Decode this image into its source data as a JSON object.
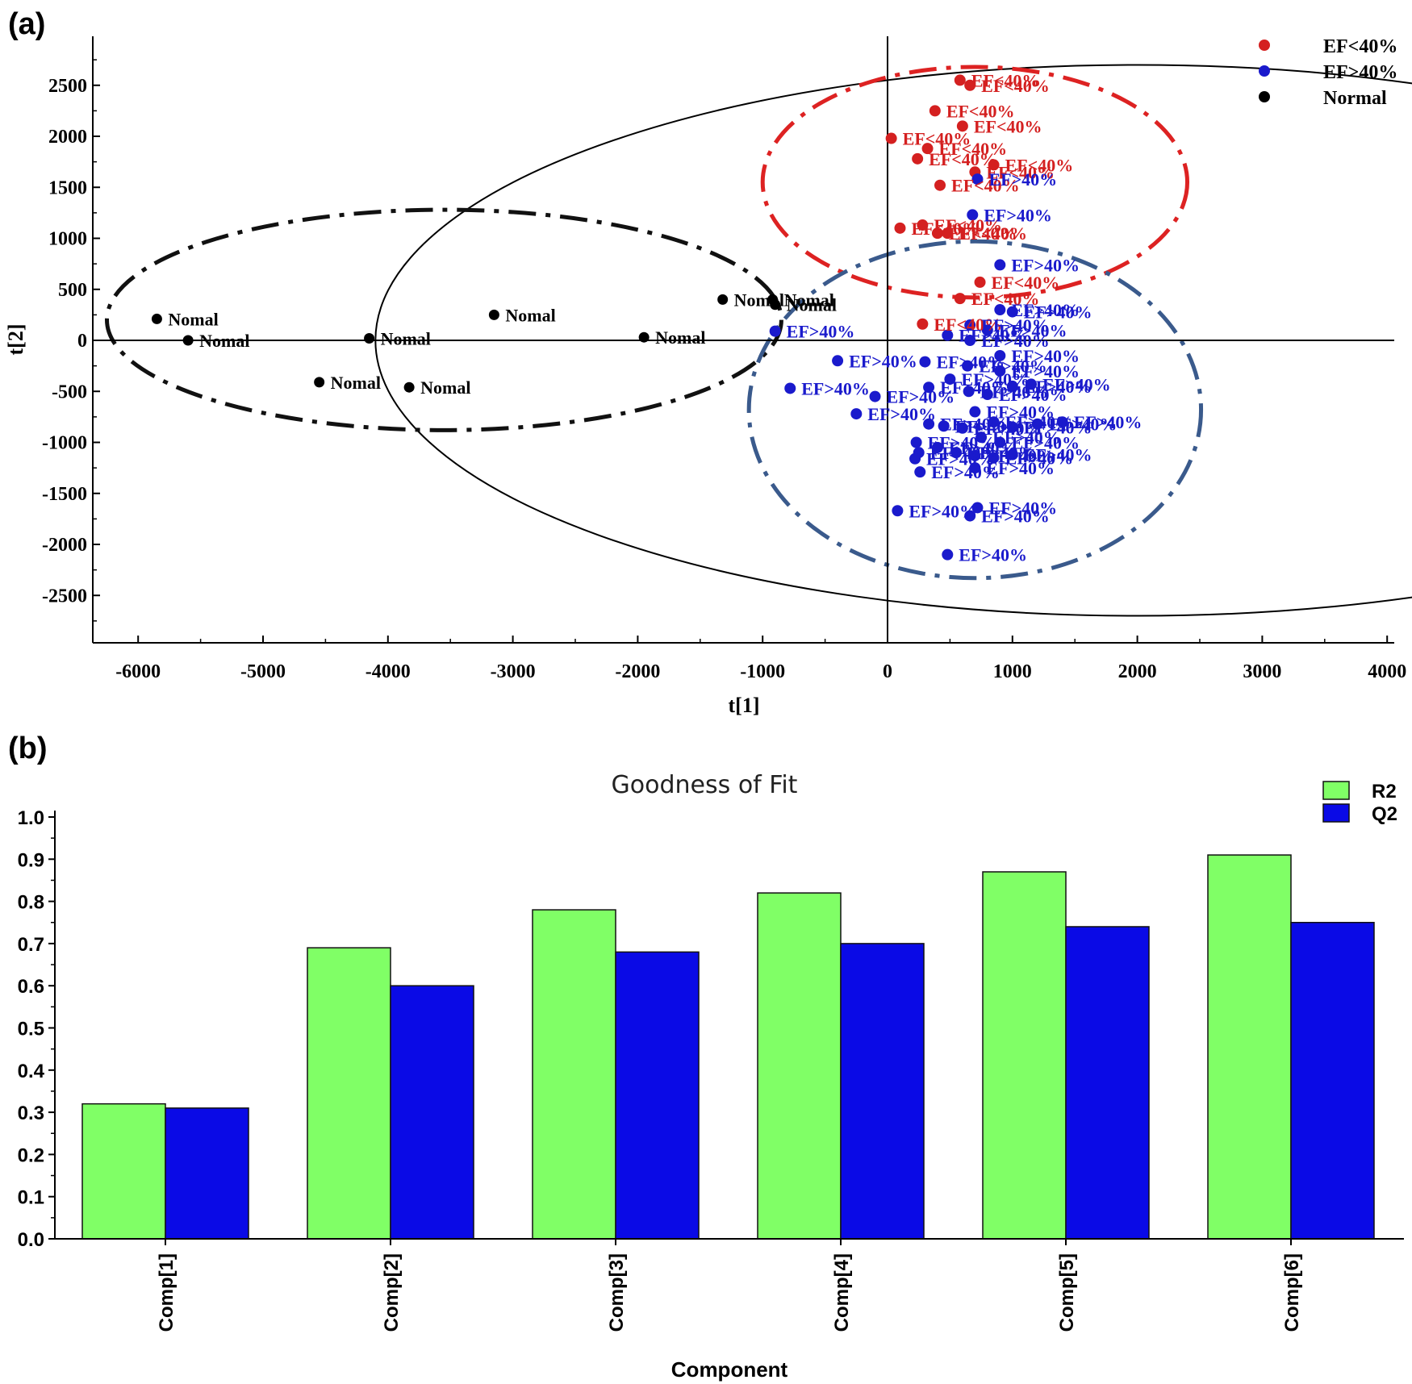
{
  "chart_data": [
    {
      "panel": "(a)",
      "type": "scatter",
      "xlabel": "t[1]",
      "ylabel": "t[2]",
      "xlim": [
        -6500,
        4000
      ],
      "ylim": [
        -2900,
        2900
      ],
      "xticks": [
        -6000,
        -5000,
        -4000,
        -3000,
        -2000,
        -1000,
        0,
        1000,
        2000,
        3000,
        4000
      ],
      "yticks": [
        2500,
        2000,
        1500,
        1000,
        500,
        0,
        -500,
        -1000,
        -1500,
        -2000,
        -2500
      ],
      "legend": [
        {
          "label": "EF<40%",
          "color": "#d42020"
        },
        {
          "label": "EF>40%",
          "color": "#1a1acc"
        },
        {
          "label": "Normal",
          "color": "#000000"
        }
      ],
      "legend_position": "top-right",
      "series": [
        {
          "name": "Normal",
          "color": "#000000",
          "label": "Nomal",
          "points": [
            [
              -5850,
              210
            ],
            [
              -5600,
              0
            ],
            [
              -4150,
              20
            ],
            [
              -3150,
              250
            ],
            [
              -1950,
              30
            ],
            [
              -1320,
              400
            ],
            [
              -920,
              400
            ],
            [
              -900,
              350
            ],
            [
              -4550,
              -410
            ],
            [
              -3830,
              -460
            ]
          ]
        },
        {
          "name": "EF<40%",
          "color": "#d42020",
          "label": "EF<40%",
          "points": [
            [
              580,
              2550
            ],
            [
              660,
              2500
            ],
            [
              380,
              2250
            ],
            [
              600,
              2100
            ],
            [
              30,
              1980
            ],
            [
              320,
              1880
            ],
            [
              240,
              1780
            ],
            [
              700,
              1650
            ],
            [
              850,
              1720
            ],
            [
              420,
              1520
            ],
            [
              280,
              1130
            ],
            [
              400,
              1050
            ],
            [
              480,
              1050
            ],
            [
              100,
              1100
            ],
            [
              740,
              570
            ],
            [
              580,
              410
            ],
            [
              280,
              160
            ]
          ]
        },
        {
          "name": "EF>40%",
          "color": "#1a1acc",
          "label": "EF>40%",
          "points": [
            [
              720,
              1580
            ],
            [
              680,
              1230
            ],
            [
              900,
              740
            ],
            [
              900,
              300
            ],
            [
              1000,
              280
            ],
            [
              -900,
              90
            ],
            [
              480,
              50
            ],
            [
              660,
              150
            ],
            [
              660,
              0
            ],
            [
              800,
              100
            ],
            [
              900,
              -150
            ],
            [
              -400,
              -200
            ],
            [
              300,
              -210
            ],
            [
              640,
              -250
            ],
            [
              900,
              -300
            ],
            [
              -780,
              -470
            ],
            [
              -100,
              -550
            ],
            [
              -250,
              -720
            ],
            [
              330,
              -460
            ],
            [
              500,
              -380
            ],
            [
              650,
              -500
            ],
            [
              800,
              -530
            ],
            [
              1000,
              -450
            ],
            [
              1150,
              -430
            ],
            [
              700,
              -700
            ],
            [
              850,
              -800
            ],
            [
              1000,
              -850
            ],
            [
              1200,
              -820
            ],
            [
              1400,
              -800
            ],
            [
              330,
              -820
            ],
            [
              450,
              -840
            ],
            [
              600,
              -860
            ],
            [
              750,
              -950
            ],
            [
              900,
              -1000
            ],
            [
              230,
              -1000
            ],
            [
              250,
              -1100
            ],
            [
              220,
              -1160
            ],
            [
              400,
              -1050
            ],
            [
              550,
              -1100
            ],
            [
              700,
              -1130
            ],
            [
              850,
              -1150
            ],
            [
              1000,
              -1120
            ],
            [
              260,
              -1290
            ],
            [
              700,
              -1250
            ],
            [
              80,
              -1670
            ],
            [
              660,
              -1720
            ],
            [
              720,
              -1640
            ],
            [
              480,
              -2100
            ]
          ]
        }
      ],
      "ellipses": [
        {
          "name": "Hotelling T2 (95%)",
          "style": "solid",
          "color": "#000000"
        },
        {
          "name": "Normal group",
          "style": "dash-dot",
          "color": "#111111"
        },
        {
          "name": "EF<40% group",
          "style": "dash-dot",
          "color": "#dd2222"
        },
        {
          "name": "EF>40% group",
          "style": "dash-dot",
          "color": "#3a5a8c"
        }
      ]
    },
    {
      "panel": "(b)",
      "type": "bar",
      "title": "Goodness of Fit",
      "xlabel": "Component",
      "ylabel": "",
      "ylim": [
        0,
        1.0
      ],
      "yticks": [
        "0.0",
        "0.1",
        "0.2",
        "0.3",
        "0.4",
        "0.5",
        "0.6",
        "0.7",
        "0.8",
        "0.9",
        "1.0"
      ],
      "categories": [
        "Comp[1]",
        "Comp[2]",
        "Comp[3]",
        "Comp[4]",
        "Comp[5]",
        "Comp[6]"
      ],
      "series": [
        {
          "name": "R2",
          "color": "#80ff66",
          "values": [
            0.32,
            0.69,
            0.78,
            0.82,
            0.87,
            0.91
          ]
        },
        {
          "name": "Q2",
          "color": "#0a0ae6",
          "values": [
            0.31,
            0.6,
            0.68,
            0.7,
            0.74,
            0.75
          ]
        }
      ],
      "legend_position": "top-right"
    }
  ]
}
